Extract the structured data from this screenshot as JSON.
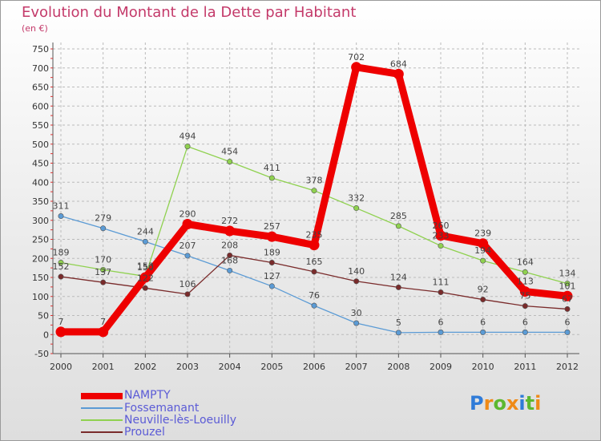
{
  "header": {
    "title": "Evolution du Montant de la Dette par Habitant",
    "subtitle": "(en €)"
  },
  "colors": {
    "title": "#c43a6a",
    "grid": "#bbbbbb",
    "axis": "#555555",
    "legend_text": "#5b5bd6"
  },
  "logo": {
    "text": "Proxiti",
    "colors": [
      "#2f7bd8",
      "#ef8a17",
      "#5cb830",
      "#ef8a17",
      "#2f7bd8",
      "#5cb830",
      "#ef8a17"
    ]
  },
  "chart_data": {
    "type": "line",
    "title": "Evolution du Montant de la Dette par Habitant",
    "subtitle": "(en €)",
    "x": [
      "2000",
      "2001",
      "2002",
      "2003",
      "2004",
      "2005",
      "2006",
      "2007",
      "2008",
      "2009",
      "2010",
      "2011",
      "2012"
    ],
    "ylim": [
      -50,
      750
    ],
    "yticks": [
      "-50",
      "0",
      "50",
      "100",
      "150",
      "200",
      "250",
      "300",
      "350",
      "400",
      "450",
      "500",
      "550",
      "600",
      "650",
      "700",
      "750"
    ],
    "grid": true,
    "legend": "bottom-left",
    "series": [
      {
        "name": "Fossemanant",
        "color": "#5b9bd5",
        "values": [
          311,
          279,
          244,
          207,
          168,
          127,
          76,
          30,
          5,
          6,
          6,
          6,
          6
        ],
        "labels": [
          "311",
          "279",
          "244",
          "207",
          "168",
          "127",
          "76",
          "30",
          "5",
          "6",
          "6",
          "6",
          "6"
        ]
      },
      {
        "name": "Neuville-lès-Loeuilly",
        "color": "#8fd14f",
        "values": [
          189,
          170,
          153,
          494,
          454,
          411,
          378,
          332,
          285,
          233,
          194,
          164,
          134
        ],
        "labels": [
          "189",
          "170",
          "153",
          "494",
          "454",
          "411",
          "378",
          "332",
          "285",
          "233",
          "194",
          "164",
          "134"
        ]
      },
      {
        "name": "Prouzel",
        "color": "#7a2b2b",
        "values": [
          152,
          137,
          122,
          106,
          208,
          189,
          165,
          140,
          124,
          111,
          92,
          75,
          67
        ],
        "labels": [
          "152",
          "137",
          "122",
          "106",
          "208",
          "189",
          "165",
          "140",
          "124",
          "111",
          "92",
          "75",
          "67"
        ]
      },
      {
        "name": "NAMPTY",
        "color": "#ee0000",
        "values": [
          7,
          7,
          150,
          290,
          272,
          257,
          235,
          702,
          684,
          260,
          239,
          113,
          101
        ],
        "labels": [
          "7",
          "7",
          "150",
          "290",
          "272",
          "257",
          "235",
          "702",
          "684",
          "260",
          "239",
          "113",
          "101"
        ]
      }
    ],
    "legend_order": [
      "NAMPTY",
      "Fossemanant",
      "Neuville-lès-Loeuilly",
      "Prouzel"
    ]
  }
}
